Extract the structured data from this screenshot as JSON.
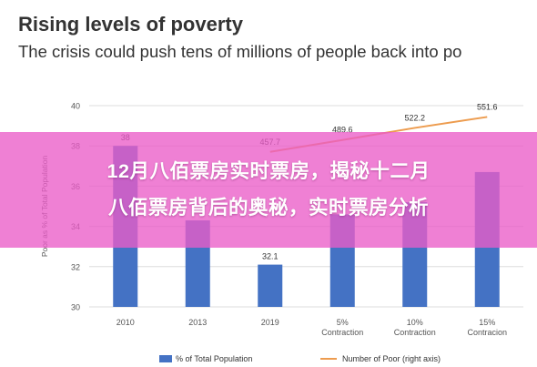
{
  "header": {
    "title": "Rising levels of poverty",
    "subtitle": "The crisis could push tens of millions of people back into po"
  },
  "banner": {
    "line1": "12月八佰票房实时票房，揭秘十二月",
    "line2": "八佰票房背后的奥秘，实时票房分析"
  },
  "chart_data": {
    "type": "bar",
    "categories": [
      [
        "2010"
      ],
      [
        "2013"
      ],
      [
        "2019"
      ],
      [
        "5%",
        "Contraction"
      ],
      [
        "10%",
        "Contraction"
      ],
      [
        "15%",
        "Contracion"
      ]
    ],
    "ylabel": "Poor as % of Total Population",
    "ylim": [
      30,
      40
    ],
    "yticks": [
      30,
      32,
      34,
      36,
      38,
      40
    ],
    "grid": true,
    "series": [
      {
        "name": "% of Total Population",
        "type": "bar",
        "color": "#4472c4",
        "values": [
          38,
          34.3,
          32.1,
          34.6,
          35.2,
          36.7
        ],
        "labels": [
          "38",
          "",
          "32.1",
          "",
          "",
          ""
        ]
      },
      {
        "name": "Number of Poor (right axis)",
        "type": "line",
        "color": "#ed9c4f",
        "values": [
          null,
          null,
          457.7,
          489.6,
          522.2,
          551.6
        ],
        "labels": [
          "",
          "",
          "457.7",
          "489.6",
          "522.2",
          "551.6"
        ]
      }
    ],
    "legend": "bottom"
  }
}
